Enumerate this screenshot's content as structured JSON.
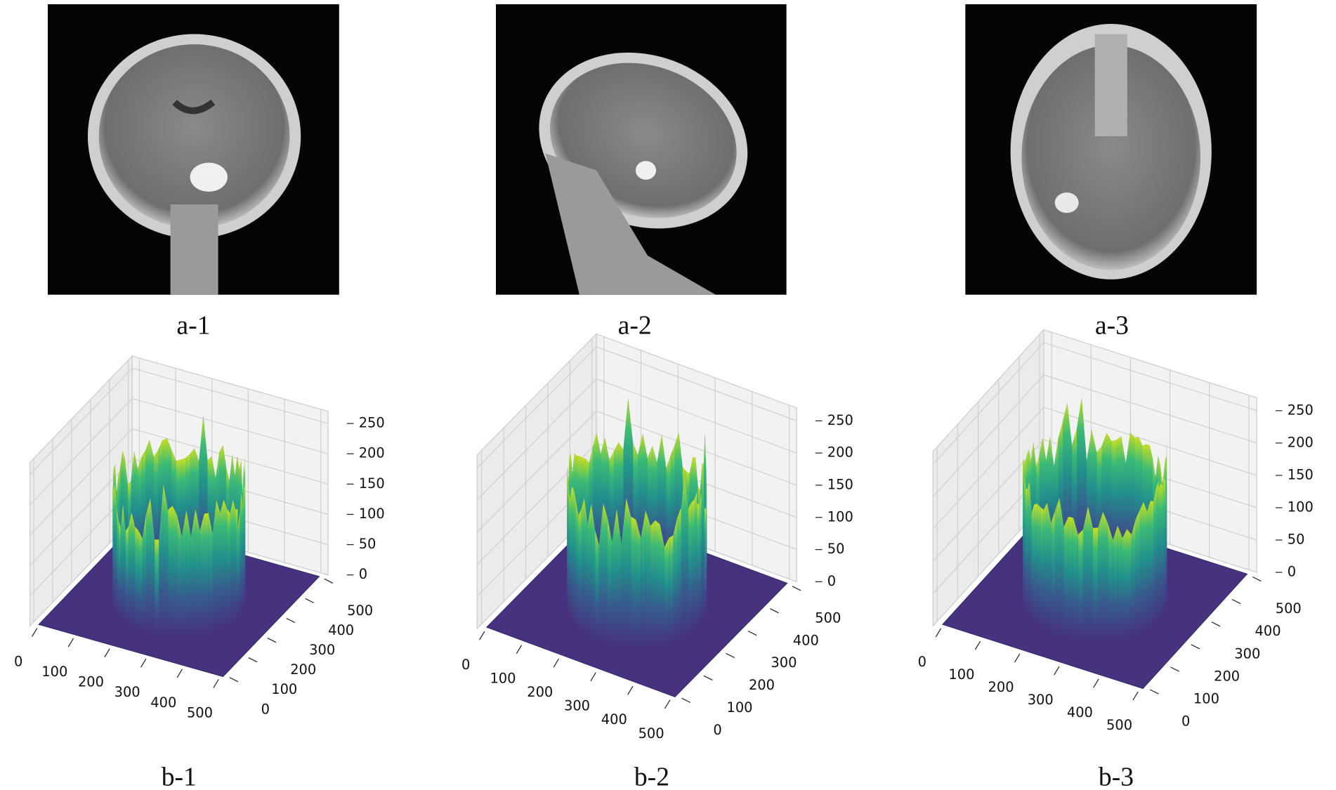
{
  "images": [
    {
      "caption": "a-1"
    },
    {
      "caption": "a-2"
    },
    {
      "caption": "a-3"
    }
  ],
  "plots": [
    {
      "caption": "b-1",
      "xticks": [
        0,
        100,
        200,
        300,
        400,
        500
      ],
      "yticks": [
        0,
        100,
        200,
        300,
        400,
        500
      ],
      "zticks": [
        0,
        50,
        100,
        150,
        200,
        250
      ]
    },
    {
      "caption": "b-2",
      "xticks": [
        0,
        100,
        200,
        300,
        400,
        500
      ],
      "yticks": [
        0,
        100,
        200,
        300,
        400,
        500
      ],
      "zticks": [
        0,
        50,
        100,
        150,
        200,
        250
      ]
    },
    {
      "caption": "b-3",
      "xticks": [
        0,
        100,
        200,
        300,
        400,
        500
      ],
      "yticks": [
        0,
        100,
        200,
        300,
        400,
        500
      ],
      "zticks": [
        0,
        50,
        100,
        150,
        200,
        250
      ]
    }
  ]
}
